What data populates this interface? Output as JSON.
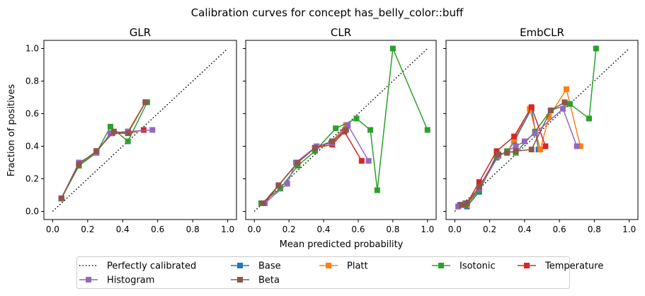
{
  "figure": {
    "suptitle": "Calibration curves for concept has_belly_color::buff",
    "xlabel": "Mean predicted probability",
    "ylabel": "Fraction of positives"
  },
  "legend": {
    "placement": "bottom-center",
    "columns": 5,
    "entries": [
      {
        "label": "Perfectly calibrated",
        "color": "#000000",
        "style": "dotted",
        "marker": "none"
      },
      {
        "label": "Base",
        "color": "#1f77b4",
        "style": "solid",
        "marker": "square"
      },
      {
        "label": "Platt",
        "color": "#ff7f0e",
        "style": "solid",
        "marker": "square"
      },
      {
        "label": "Isotonic",
        "color": "#2ca02c",
        "style": "solid",
        "marker": "square"
      },
      {
        "label": "Temperature",
        "color": "#d62728",
        "style": "solid",
        "marker": "square"
      },
      {
        "label": "Histogram",
        "color": "#9467bd",
        "style": "solid",
        "marker": "square"
      },
      {
        "label": "Beta",
        "color": "#8c564b",
        "style": "solid",
        "marker": "square"
      }
    ]
  },
  "chart_data": [
    {
      "type": "line",
      "title": "GLR",
      "xlim": [
        -0.05,
        1.05
      ],
      "ylim": [
        -0.05,
        1.05
      ],
      "xticks": [
        0.0,
        0.2,
        0.4,
        0.6,
        0.8,
        1.0
      ],
      "yticks": [
        0.0,
        0.2,
        0.4,
        0.6,
        0.8,
        1.0
      ],
      "xtick_labels": [
        "0.0",
        "0.2",
        "0.4",
        "0.6",
        "0.8",
        "1.0"
      ],
      "ytick_labels": [
        "0.0",
        "0.2",
        "0.4",
        "0.6",
        "0.8",
        "1.0"
      ],
      "grid": false,
      "series": [
        {
          "name": "Base",
          "x": [
            0.05,
            0.15,
            0.25,
            0.34,
            0.43,
            0.53
          ],
          "y": [
            0.08,
            0.29,
            0.37,
            0.48,
            0.49,
            0.67
          ]
        },
        {
          "name": "Platt",
          "x": [
            0.05,
            0.15,
            0.25,
            0.34,
            0.43,
            0.53
          ],
          "y": [
            0.08,
            0.29,
            0.37,
            0.48,
            0.49,
            0.67
          ]
        },
        {
          "name": "Isotonic",
          "x": [
            0.05,
            0.15,
            0.25,
            0.33,
            0.43,
            0.54
          ],
          "y": [
            0.08,
            0.28,
            0.36,
            0.52,
            0.43,
            0.67
          ]
        },
        {
          "name": "Temperature",
          "x": [
            0.05,
            0.15,
            0.25,
            0.34,
            0.43,
            0.52
          ],
          "y": [
            0.08,
            0.29,
            0.37,
            0.48,
            0.48,
            0.5
          ]
        },
        {
          "name": "Histogram",
          "x": [
            0.05,
            0.15,
            0.25,
            0.33,
            0.43,
            0.57
          ],
          "y": [
            0.08,
            0.3,
            0.36,
            0.48,
            0.49,
            0.5
          ]
        },
        {
          "name": "Beta",
          "x": [
            0.05,
            0.15,
            0.25,
            0.35,
            0.43,
            0.53
          ],
          "y": [
            0.08,
            0.29,
            0.37,
            0.49,
            0.48,
            0.67
          ]
        }
      ]
    },
    {
      "type": "line",
      "title": "CLR",
      "xlim": [
        -0.05,
        1.05
      ],
      "ylim": [
        -0.05,
        1.05
      ],
      "xticks": [
        0.0,
        0.2,
        0.4,
        0.6,
        0.8,
        1.0
      ],
      "yticks": [
        0.0,
        0.2,
        0.4,
        0.6,
        0.8,
        1.0
      ],
      "xtick_labels": [
        "0.0",
        "0.2",
        "0.4",
        "0.6",
        "0.8",
        "1.0"
      ],
      "ytick_labels": [],
      "grid": false,
      "series": [
        {
          "name": "Base",
          "x": [
            0.05,
            0.14,
            0.25,
            0.35,
            0.45,
            0.53
          ],
          "y": [
            0.05,
            0.16,
            0.3,
            0.39,
            0.43,
            0.53
          ]
        },
        {
          "name": "Platt",
          "x": [
            0.05,
            0.14,
            0.25,
            0.35,
            0.45,
            0.53
          ],
          "y": [
            0.05,
            0.16,
            0.3,
            0.39,
            0.43,
            0.53
          ]
        },
        {
          "name": "Isotonic",
          "x": [
            0.04,
            0.15,
            0.25,
            0.35,
            0.47,
            0.59,
            0.67,
            0.71,
            0.8,
            1.0
          ],
          "y": [
            0.05,
            0.14,
            0.28,
            0.37,
            0.51,
            0.57,
            0.5,
            0.13,
            1.0,
            0.5
          ]
        },
        {
          "name": "Temperature",
          "x": [
            0.06,
            0.14,
            0.25,
            0.35,
            0.45,
            0.52,
            0.62
          ],
          "y": [
            0.05,
            0.16,
            0.3,
            0.39,
            0.41,
            0.49,
            0.31
          ]
        },
        {
          "name": "Histogram",
          "x": [
            0.06,
            0.19,
            0.24,
            0.36,
            0.45,
            0.54,
            0.66
          ],
          "y": [
            0.05,
            0.17,
            0.3,
            0.4,
            0.42,
            0.53,
            0.31
          ]
        },
        {
          "name": "Beta",
          "x": [
            0.05,
            0.14,
            0.25,
            0.35,
            0.45,
            0.53
          ],
          "y": [
            0.05,
            0.16,
            0.3,
            0.39,
            0.43,
            0.5
          ]
        }
      ]
    },
    {
      "type": "line",
      "title": "EmbCLR",
      "xlim": [
        -0.05,
        1.05
      ],
      "ylim": [
        -0.05,
        1.05
      ],
      "xticks": [
        0.0,
        0.2,
        0.4,
        0.6,
        0.8,
        1.0
      ],
      "yticks": [
        0.0,
        0.2,
        0.4,
        0.6,
        0.8,
        1.0
      ],
      "xtick_labels": [
        "0.0",
        "0.2",
        "0.4",
        "0.6",
        "0.8",
        "1.0"
      ],
      "ytick_labels": [],
      "grid": false,
      "series": [
        {
          "name": "Base",
          "x": [
            0.03,
            0.07,
            0.14,
            0.24,
            0.3,
            0.34,
            0.44,
            0.48
          ],
          "y": [
            0.04,
            0.03,
            0.12,
            0.35,
            0.36,
            0.43,
            0.63,
            0.38
          ]
        },
        {
          "name": "Platt",
          "x": [
            0.04,
            0.07,
            0.14,
            0.25,
            0.3,
            0.34,
            0.43,
            0.49,
            0.54,
            0.64,
            0.72
          ],
          "y": [
            0.04,
            0.04,
            0.13,
            0.35,
            0.36,
            0.44,
            0.63,
            0.38,
            0.58,
            0.75,
            0.4
          ]
        },
        {
          "name": "Isotonic",
          "x": [
            0.02,
            0.06,
            0.14,
            0.24,
            0.3,
            0.35,
            0.46,
            0.55,
            0.66,
            0.77,
            0.81
          ],
          "y": [
            0.03,
            0.04,
            0.13,
            0.33,
            0.37,
            0.36,
            0.49,
            0.62,
            0.66,
            0.57,
            1.0
          ]
        },
        {
          "name": "Temperature",
          "x": [
            0.04,
            0.07,
            0.14,
            0.24,
            0.34,
            0.44,
            0.52
          ],
          "y": [
            0.04,
            0.05,
            0.18,
            0.37,
            0.46,
            0.64,
            0.4
          ]
        },
        {
          "name": "Histogram",
          "x": [
            0.02,
            0.06,
            0.14,
            0.25,
            0.35,
            0.4,
            0.46,
            0.62,
            0.7
          ],
          "y": [
            0.03,
            0.05,
            0.14,
            0.34,
            0.4,
            0.43,
            0.48,
            0.63,
            0.4
          ]
        },
        {
          "name": "Beta",
          "x": [
            0.04,
            0.07,
            0.14,
            0.25,
            0.3,
            0.35,
            0.44,
            0.55,
            0.63
          ],
          "y": [
            0.04,
            0.05,
            0.15,
            0.35,
            0.36,
            0.37,
            0.38,
            0.62,
            0.67
          ]
        }
      ]
    }
  ]
}
